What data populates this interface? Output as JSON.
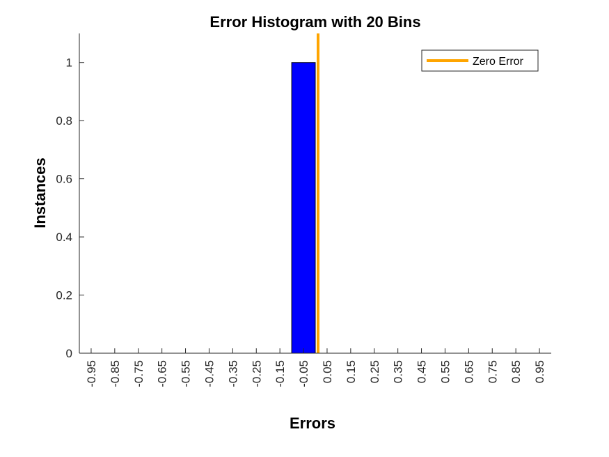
{
  "chart_data": {
    "type": "bar",
    "title": "Error Histogram with 20 Bins",
    "xlabel": "Errors",
    "ylabel": "Instances",
    "categories": [
      "-0.95",
      "-0.85",
      "-0.75",
      "-0.65",
      "-0.55",
      "-0.45",
      "-0.35",
      "-0.25",
      "-0.15",
      "-0.05",
      "0.05",
      "0.15",
      "0.25",
      "0.35",
      "0.45",
      "0.55",
      "0.65",
      "0.75",
      "0.85",
      "0.95"
    ],
    "series": [
      {
        "values": [
          0,
          0,
          0,
          0,
          0,
          0,
          0,
          0,
          0,
          1,
          0,
          0,
          0,
          0,
          0,
          0,
          0,
          0,
          0,
          0
        ],
        "color": "#0000FF"
      }
    ],
    "reference_line": {
      "name": "Zero Error",
      "x": 0,
      "color": "#FFA500"
    },
    "xlim": [
      -1,
      1
    ],
    "ylim": [
      0,
      1.1
    ],
    "yticks": [
      "0",
      "0.2",
      "0.4",
      "0.6",
      "0.8",
      "1"
    ],
    "legend": {
      "position": "top-right",
      "entries": [
        "Zero Error"
      ]
    },
    "grid": false
  }
}
